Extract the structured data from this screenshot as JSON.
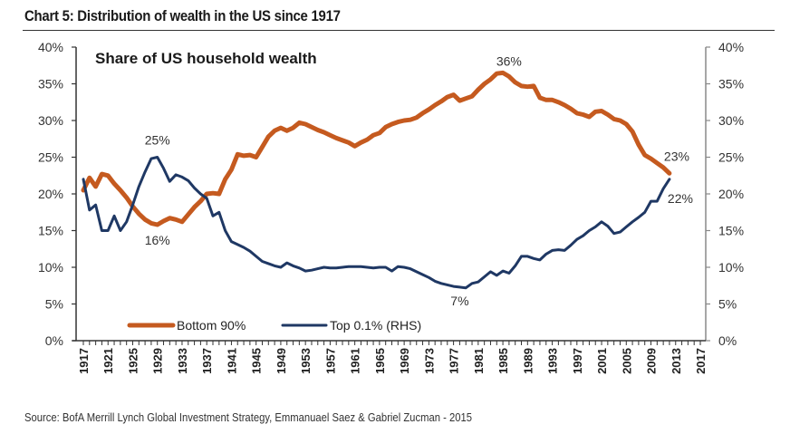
{
  "header": {
    "title": "Chart 5: Distribution of wealth in the US since 1917"
  },
  "footer": {
    "source": "Source: BofA Merrill Lynch Global Investment Strategy, Emmanuael Saez & Gabriel Zucman - 2015"
  },
  "chart_data": {
    "type": "line",
    "title": "Chart 5: Distribution of wealth in the US since 1917",
    "subtitle": "Share of US household wealth",
    "xlabel": "",
    "ylabel": "",
    "xlim": [
      1917,
      2017
    ],
    "ylim": [
      0,
      40
    ],
    "y2lim": [
      0,
      40
    ],
    "grid": false,
    "legend_position": "bottom-left",
    "x_tick_labels": [
      "1917",
      "1921",
      "1925",
      "1929",
      "1933",
      "1937",
      "1941",
      "1945",
      "1949",
      "1953",
      "1957",
      "1961",
      "1965",
      "1969",
      "1973",
      "1977",
      "1981",
      "1985",
      "1989",
      "1993",
      "1997",
      "2001",
      "2005",
      "2009",
      "2013",
      "2017"
    ],
    "y_tick_labels": [
      "0%",
      "5%",
      "10%",
      "15%",
      "20%",
      "25%",
      "30%",
      "35%",
      "40%"
    ],
    "y2_tick_labels": [
      "0%",
      "5%",
      "10%",
      "15%",
      "20%",
      "25%",
      "30%",
      "35%",
      "40%"
    ],
    "x": [
      1917,
      1918,
      1919,
      1920,
      1921,
      1922,
      1923,
      1924,
      1925,
      1926,
      1927,
      1928,
      1929,
      1930,
      1931,
      1932,
      1933,
      1934,
      1935,
      1936,
      1937,
      1938,
      1939,
      1940,
      1941,
      1942,
      1943,
      1944,
      1945,
      1946,
      1947,
      1948,
      1949,
      1950,
      1951,
      1952,
      1953,
      1954,
      1955,
      1956,
      1957,
      1958,
      1959,
      1960,
      1961,
      1962,
      1963,
      1964,
      1965,
      1966,
      1967,
      1968,
      1969,
      1970,
      1971,
      1972,
      1973,
      1974,
      1975,
      1976,
      1977,
      1978,
      1979,
      1980,
      1981,
      1982,
      1983,
      1984,
      1985,
      1986,
      1987,
      1988,
      1989,
      1990,
      1991,
      1992,
      1993,
      1994,
      1995,
      1996,
      1997,
      1998,
      1999,
      2000,
      2001,
      2002,
      2003,
      2004,
      2005,
      2006,
      2007,
      2008,
      2009,
      2010,
      2011,
      2012
    ],
    "series": [
      {
        "name": "Bottom 90%",
        "axis": "left",
        "color": "#c55a1f",
        "values": [
          20.5,
          22.2,
          21.0,
          22.7,
          22.5,
          21.4,
          20.5,
          19.5,
          18.3,
          17.3,
          16.5,
          16.0,
          15.8,
          16.3,
          16.7,
          16.5,
          16.2,
          17.2,
          18.2,
          19.0,
          20.0,
          20.1,
          20.0,
          22.0,
          23.3,
          25.4,
          25.2,
          25.3,
          25.0,
          26.4,
          27.8,
          28.6,
          29.0,
          28.6,
          29.0,
          29.7,
          29.5,
          29.1,
          28.7,
          28.4,
          28.0,
          27.6,
          27.3,
          27.0,
          26.5,
          27.0,
          27.4,
          28.0,
          28.3,
          29.1,
          29.5,
          29.8,
          30.0,
          30.1,
          30.4,
          31.0,
          31.5,
          32.1,
          32.6,
          33.2,
          33.5,
          32.7,
          33.0,
          33.3,
          34.2,
          35.0,
          35.6,
          36.4,
          36.5,
          36.0,
          35.2,
          34.7,
          34.6,
          34.7,
          33.1,
          32.8,
          32.8,
          32.5,
          32.1,
          31.6,
          31.0,
          30.8,
          30.5,
          31.2,
          31.3,
          30.8,
          30.2,
          30.0,
          29.5,
          28.5,
          26.7,
          25.3,
          24.8,
          24.2,
          23.6,
          22.8
        ]
      },
      {
        "name": "Top 0.1% (RHS)",
        "axis": "right",
        "color": "#1f3864",
        "values": [
          22.0,
          17.8,
          18.5,
          15.0,
          15.0,
          17.0,
          15.0,
          16.2,
          18.5,
          21.0,
          23.0,
          24.8,
          25.0,
          23.5,
          21.7,
          22.6,
          22.3,
          21.8,
          20.8,
          20.0,
          19.4,
          17.0,
          17.5,
          15.0,
          13.5,
          13.1,
          12.7,
          12.2,
          11.5,
          10.8,
          10.5,
          10.2,
          10.0,
          10.6,
          10.2,
          9.9,
          9.5,
          9.6,
          9.8,
          10.0,
          9.9,
          9.9,
          10.0,
          10.1,
          10.1,
          10.1,
          10.0,
          9.9,
          10.0,
          10.0,
          9.5,
          10.1,
          10.0,
          9.8,
          9.4,
          9.0,
          8.6,
          8.1,
          7.8,
          7.6,
          7.4,
          7.3,
          7.2,
          7.8,
          8.0,
          8.7,
          9.4,
          8.9,
          9.5,
          9.2,
          10.2,
          11.5,
          11.5,
          11.2,
          11.0,
          11.8,
          12.3,
          12.4,
          12.3,
          13.0,
          13.8,
          14.3,
          15.0,
          15.5,
          16.2,
          15.6,
          14.6,
          14.8,
          15.5,
          16.2,
          16.8,
          17.5,
          19.0,
          19.0,
          20.7,
          22.0
        ]
      }
    ],
    "annotations": [
      {
        "text": "25%",
        "series": "Top 0.1% (RHS)",
        "x": 1929
      },
      {
        "text": "16%",
        "series": "Bottom 90%",
        "x": 1929
      },
      {
        "text": "36%",
        "series": "Bottom 90%",
        "x": 1986
      },
      {
        "text": "7%",
        "series": "Top 0.1% (RHS)",
        "x": 1978
      },
      {
        "text": "23%",
        "series": "Bottom 90%",
        "x": 2012
      },
      {
        "text": "22%",
        "series": "Top 0.1% (RHS)",
        "x": 2012
      }
    ]
  }
}
